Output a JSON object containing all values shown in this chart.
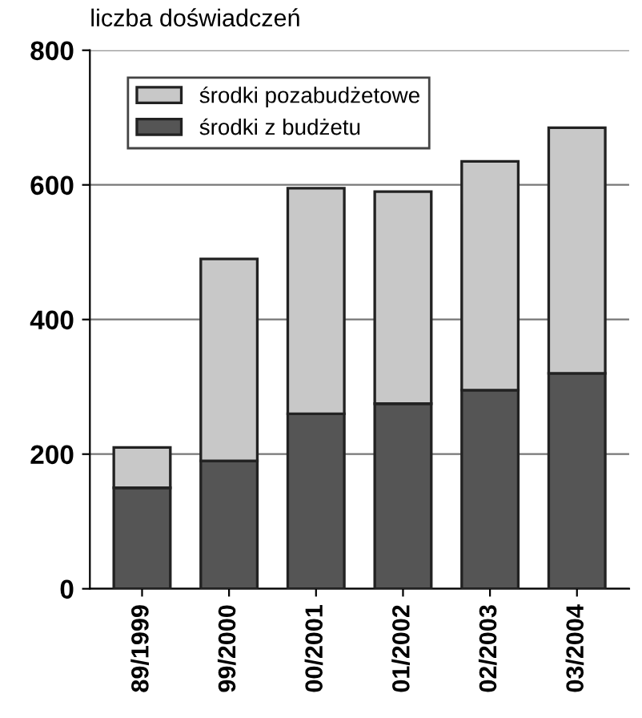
{
  "chart_data": {
    "type": "bar",
    "stacked": true,
    "ylabel": "liczba doświadczeń",
    "categories": [
      "89/1999",
      "99/2000",
      "00/2001",
      "01/2002",
      "02/2003",
      "03/2004"
    ],
    "series": [
      {
        "name": "środki z budżetu",
        "color": "#555555",
        "values": [
          150,
          190,
          260,
          275,
          295,
          320
        ]
      },
      {
        "name": "środki pozabudżetowe",
        "color": "#c8c8c8",
        "values": [
          60,
          300,
          335,
          315,
          340,
          365
        ]
      }
    ],
    "ylim": [
      0,
      800
    ],
    "yticks": [
      0,
      200,
      400,
      600,
      800
    ],
    "grid": "y",
    "legend": "top left"
  }
}
